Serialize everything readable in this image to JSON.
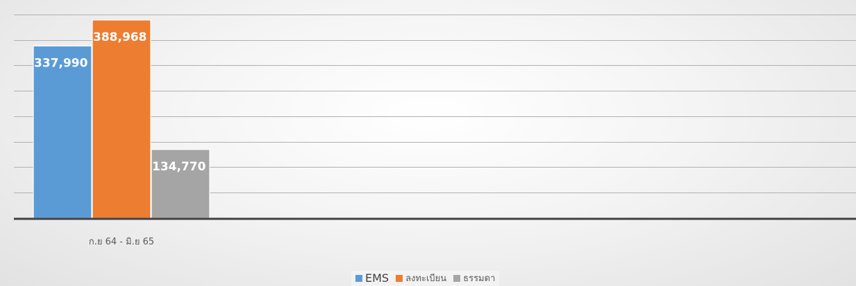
{
  "chart_data": {
    "type": "bar",
    "title": "",
    "xlabel": "",
    "ylabel": "",
    "categories": [
      "ก.ย 64 - มิ.ย 65"
    ],
    "series": [
      {
        "name": "EMS",
        "values": [
          337990
        ],
        "value_labels": [
          "337,990"
        ],
        "color": "#5B9BD5"
      },
      {
        "name": "ลงทะเบียน",
        "values": [
          388968
        ],
        "value_labels": [
          "388,968"
        ],
        "color": "#ED7D31"
      },
      {
        "name": "ธรรมดา",
        "values": [
          134770
        ],
        "value_labels": [
          "134,770"
        ],
        "color": "#A5A5A5"
      }
    ],
    "ylim": [
      0,
      450000
    ],
    "y_gridline_step": 50000,
    "grid": true,
    "y_tick_labels_visible": false,
    "legend_position": "bottom",
    "axis_color": "#404040",
    "grid_color": "#b0b0b0"
  }
}
